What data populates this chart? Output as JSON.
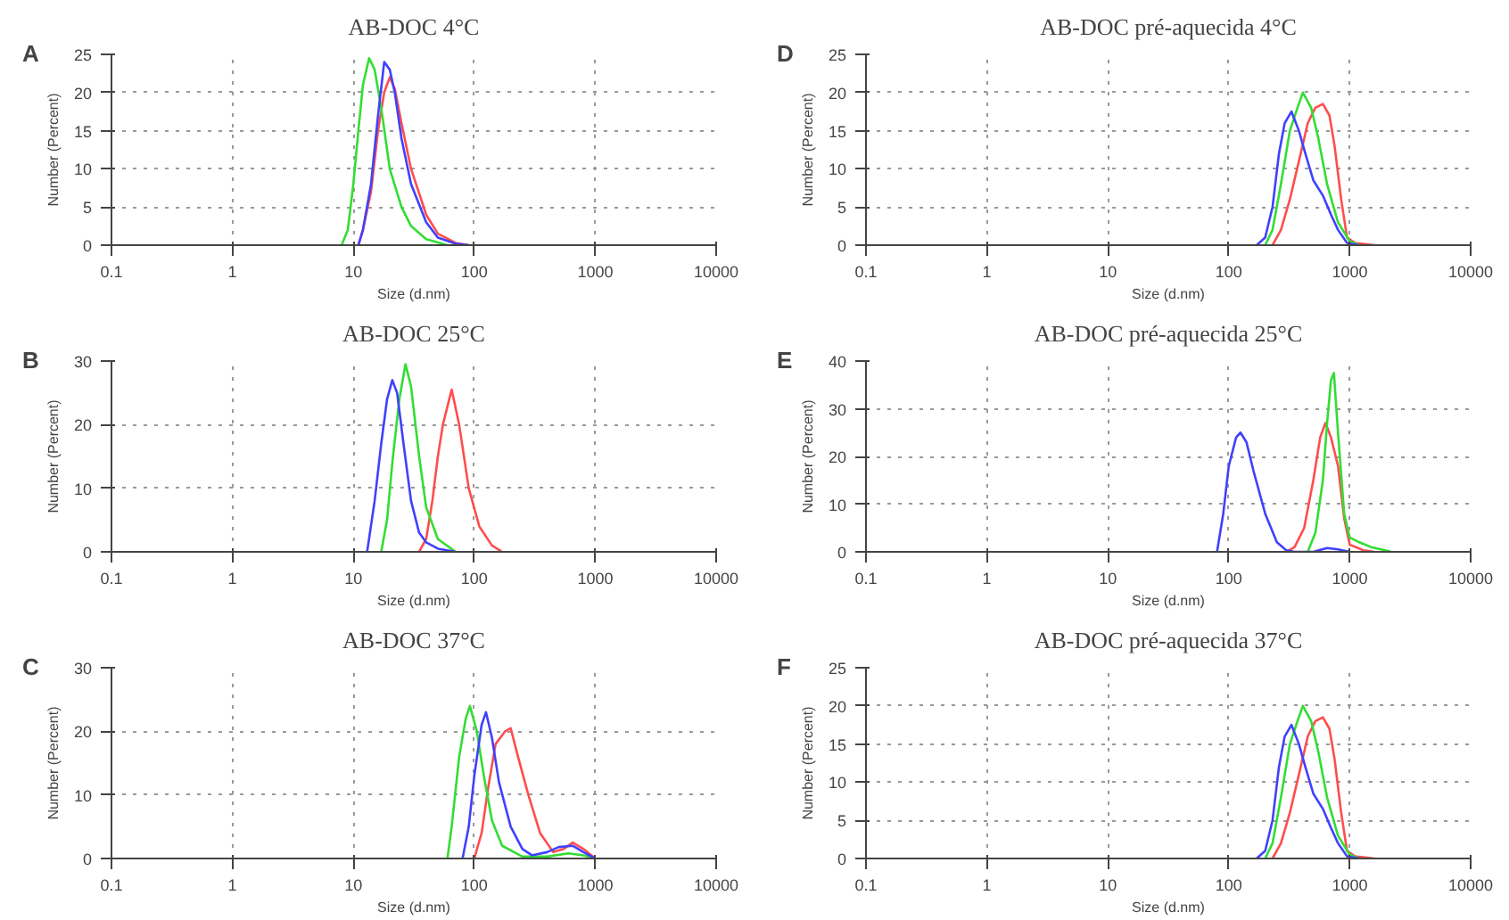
{
  "chart_data": [
    {
      "type": "line",
      "title": "AB-DOC 4°C",
      "xlabel": "Size (d.nm)",
      "ylabel": "Number (Percent)",
      "annotations": [
        "A"
      ],
      "log": "x",
      "grid": true,
      "xlim": [
        0.1,
        10000
      ],
      "xticks": [
        0.1,
        1,
        10,
        100,
        1000,
        10000
      ],
      "ylim": [
        0,
        25
      ],
      "yticks": [
        0,
        5,
        10,
        15,
        20,
        25
      ],
      "series": [
        {
          "color": "#ff4d4d",
          "x": [
            11,
            12,
            14,
            16,
            18,
            20,
            22,
            25,
            30,
            40,
            50,
            70,
            90
          ],
          "values": [
            0,
            2,
            7,
            15,
            20,
            22,
            20.5,
            16,
            10,
            4,
            1.5,
            0.3,
            0
          ]
        },
        {
          "color": "#33dd33",
          "x": [
            8,
            9,
            10,
            11,
            12,
            13.5,
            15,
            17,
            20,
            25,
            30,
            40,
            60
          ],
          "values": [
            0,
            2,
            8,
            15,
            21,
            24.5,
            23,
            18,
            10,
            5,
            2.5,
            0.8,
            0
          ]
        },
        {
          "color": "#4040ff",
          "x": [
            11,
            12,
            14,
            16,
            18,
            20,
            22,
            25,
            30,
            40,
            50,
            70,
            90
          ],
          "values": [
            0,
            2,
            8,
            17,
            24,
            23,
            20,
            14,
            8,
            3,
            1,
            0.2,
            0
          ]
        }
      ]
    },
    {
      "type": "line",
      "title": "AB-DOC pré-aquecida 4°C",
      "xlabel": "Size (d.nm)",
      "ylabel": "Number (Percent)",
      "annotations": [
        "D"
      ],
      "log": "x",
      "grid": true,
      "xlim": [
        0.1,
        10000
      ],
      "xticks": [
        0.1,
        1,
        10,
        100,
        1000,
        10000
      ],
      "ylim": [
        0,
        25
      ],
      "yticks": [
        0,
        5,
        10,
        15,
        20,
        25
      ],
      "series": [
        {
          "color": "#ff4d4d",
          "x": [
            230,
            270,
            320,
            380,
            450,
            520,
            600,
            680,
            750,
            850,
            950,
            1100,
            1600
          ],
          "values": [
            0,
            2,
            6,
            11,
            16,
            18,
            18.5,
            17,
            13,
            6,
            1,
            0.3,
            0
          ]
        },
        {
          "color": "#33dd33",
          "x": [
            200,
            230,
            270,
            320,
            370,
            410,
            480,
            550,
            650,
            800,
            1000,
            1200
          ],
          "values": [
            0,
            2,
            8,
            15,
            18,
            20,
            18,
            14,
            8,
            3,
            0.5,
            0
          ]
        },
        {
          "color": "#4040ff",
          "x": [
            170,
            200,
            230,
            260,
            290,
            330,
            380,
            430,
            500,
            600,
            700,
            800,
            950,
            1200
          ],
          "values": [
            0,
            1,
            5,
            12,
            16,
            17.5,
            15,
            12,
            8.5,
            6.5,
            4,
            2,
            0.3,
            0
          ]
        }
      ]
    },
    {
      "type": "line",
      "title": "AB-DOC 25°C",
      "xlabel": "Size (d.nm)",
      "ylabel": "Number (Percent)",
      "annotations": [
        "B"
      ],
      "log": "x",
      "grid": true,
      "xlim": [
        0.1,
        10000
      ],
      "xticks": [
        0.1,
        1,
        10,
        100,
        1000,
        10000
      ],
      "ylim": [
        0,
        30
      ],
      "yticks": [
        0,
        10,
        20,
        30
      ],
      "series": [
        {
          "color": "#ff4d4d",
          "x": [
            35,
            40,
            45,
            50,
            55,
            65,
            75,
            90,
            110,
            140,
            170
          ],
          "values": [
            0,
            2,
            8,
            15,
            20,
            25.5,
            20,
            10,
            4,
            1,
            0
          ]
        },
        {
          "color": "#33dd33",
          "x": [
            17,
            19,
            21,
            24,
            27,
            30,
            35,
            40,
            50,
            70
          ],
          "values": [
            0,
            5,
            14,
            24,
            29.5,
            26,
            15,
            7,
            2,
            0
          ]
        },
        {
          "color": "#4040ff",
          "x": [
            13,
            15,
            17,
            19,
            21,
            23,
            26,
            30,
            35,
            40,
            50,
            70
          ],
          "values": [
            0,
            8,
            17,
            24,
            27,
            25,
            17,
            8,
            3,
            1.5,
            0.5,
            0
          ]
        }
      ]
    },
    {
      "type": "line",
      "title": "AB-DOC pré-aquecida 25°C",
      "xlabel": "Size (d.nm)",
      "ylabel": "Number (Percent)",
      "annotations": [
        "E"
      ],
      "log": "x",
      "grid": true,
      "xlim": [
        0.1,
        10000
      ],
      "xticks": [
        0.1,
        1,
        10,
        100,
        1000,
        10000
      ],
      "ylim": [
        0,
        40
      ],
      "yticks": [
        0,
        10,
        20,
        30,
        40
      ],
      "series": [
        {
          "color": "#ff4d4d",
          "x": [
            300,
            350,
            420,
            500,
            570,
            630,
            700,
            800,
            900,
            1000,
            1300,
            1600
          ],
          "values": [
            0,
            1,
            5,
            15,
            24,
            27,
            24,
            18,
            7,
            1.5,
            0.3,
            0
          ]
        },
        {
          "color": "#33dd33",
          "x": [
            450,
            520,
            600,
            650,
            700,
            740,
            800,
            900,
            1000,
            1200,
            1500,
            2000,
            2200
          ],
          "values": [
            0,
            4,
            15,
            27,
            36,
            37.5,
            25,
            8,
            3,
            2,
            1,
            0.3,
            0
          ]
        },
        {
          "color": "#4040ff",
          "x": [
            80,
            90,
            100,
            115,
            125,
            140,
            160,
            200,
            250,
            300,
            350,
            500,
            650,
            800,
            1000
          ],
          "values": [
            0,
            8,
            18,
            24,
            25,
            23,
            17,
            8,
            2,
            0.3,
            0,
            0,
            0.8,
            0.5,
            0
          ]
        }
      ]
    },
    {
      "type": "line",
      "title": "AB-DOC 37°C",
      "xlabel": "Size (d.nm)",
      "ylabel": "Number (Percent)",
      "annotations": [
        "C"
      ],
      "log": "x",
      "grid": true,
      "xlim": [
        0.1,
        10000
      ],
      "xticks": [
        0.1,
        1,
        10,
        100,
        1000,
        10000
      ],
      "ylim": [
        0,
        30
      ],
      "yticks": [
        0,
        10,
        20,
        30
      ],
      "series": [
        {
          "color": "#ff4d4d",
          "x": [
            100,
            115,
            130,
            150,
            180,
            200,
            230,
            280,
            350,
            450,
            550,
            650,
            800,
            1000
          ],
          "values": [
            0,
            4,
            11,
            18,
            20,
            20.5,
            16,
            10,
            4,
            1,
            1.5,
            2.5,
            1.5,
            0
          ]
        },
        {
          "color": "#33dd33",
          "x": [
            60,
            65,
            75,
            85,
            92,
            105,
            120,
            140,
            170,
            250,
            400,
            600,
            800,
            1000
          ],
          "values": [
            0,
            5,
            16,
            22,
            24,
            20,
            13,
            6,
            2,
            0.3,
            0.3,
            0.8,
            0.5,
            0
          ]
        },
        {
          "color": "#4040ff",
          "x": [
            80,
            90,
            100,
            115,
            125,
            140,
            160,
            200,
            250,
            300,
            400,
            500,
            650,
            800,
            1000
          ],
          "values": [
            0,
            5,
            13,
            21,
            23,
            19,
            12,
            5,
            1.5,
            0.5,
            1,
            1.8,
            2,
            1,
            0
          ]
        }
      ]
    },
    {
      "type": "line",
      "title": "AB-DOC pré-aquecida 37°C",
      "xlabel": "Size (d.nm)",
      "ylabel": "Number (Percent)",
      "annotations": [
        "F"
      ],
      "log": "x",
      "grid": true,
      "xlim": [
        0.1,
        10000
      ],
      "xticks": [
        0.1,
        1,
        10,
        100,
        1000,
        10000
      ],
      "ylim": [
        0,
        25
      ],
      "yticks": [
        0,
        5,
        10,
        15,
        20,
        25
      ],
      "series": [
        {
          "color": "#ff4d4d",
          "x": [
            230,
            270,
            320,
            380,
            450,
            520,
            600,
            680,
            750,
            850,
            950,
            1100,
            1600
          ],
          "values": [
            0,
            2,
            6,
            11,
            16,
            18,
            18.5,
            17,
            13,
            6,
            1,
            0.3,
            0
          ]
        },
        {
          "color": "#33dd33",
          "x": [
            200,
            230,
            270,
            320,
            370,
            410,
            480,
            550,
            650,
            800,
            1000,
            1200
          ],
          "values": [
            0,
            2,
            8,
            15,
            18,
            20,
            18,
            14,
            8,
            3,
            0.5,
            0
          ]
        },
        {
          "color": "#4040ff",
          "x": [
            170,
            200,
            230,
            260,
            290,
            330,
            380,
            430,
            500,
            600,
            700,
            800,
            950,
            1200
          ],
          "values": [
            0,
            1,
            5,
            12,
            16,
            17.5,
            15,
            12,
            8.5,
            6.5,
            4,
            2,
            0.3,
            0
          ]
        }
      ]
    }
  ]
}
